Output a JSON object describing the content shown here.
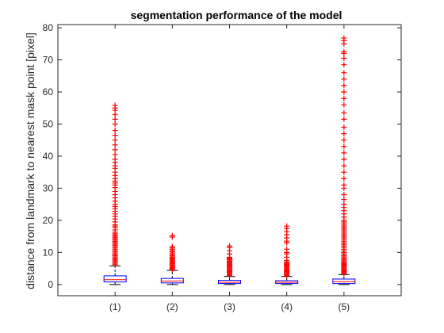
{
  "chart_data": {
    "type": "boxplot",
    "title": "segmentation performance of the model",
    "xlabel": "",
    "ylabel": "distance from landmark to nearest mask point [pixel]",
    "ylim": [
      -3.5,
      81
    ],
    "yticks": [
      0,
      10,
      20,
      30,
      40,
      50,
      60,
      70,
      80
    ],
    "grid": false,
    "categories": [
      "(1)",
      "(2)",
      "(3)",
      "(4)",
      "(5)"
    ],
    "boxes": [
      {
        "whisker_low": 0,
        "q1": 0.8,
        "median": 1.5,
        "q3": 2.7,
        "whisker_high": 5.8,
        "outliers": [
          6.2,
          6.6,
          7.0,
          7.4,
          7.8,
          8.2,
          8.6,
          9.0,
          9.4,
          9.8,
          10.2,
          10.6,
          11.0,
          11.4,
          11.8,
          12.2,
          12.6,
          13.0,
          13.4,
          13.8,
          14.2,
          14.6,
          15.0,
          15.4,
          15.8,
          16.3,
          17.0,
          17.8,
          18.2,
          18.6,
          19.5,
          20.4,
          21.2,
          22.0,
          22.8,
          23.6,
          24.3,
          25.0,
          26.0,
          27.0,
          28.0,
          29.0,
          30.2,
          31.0,
          31.6,
          32.2,
          33.0,
          34.0,
          35.0,
          36.2,
          37.0,
          38.0,
          39.0,
          40.5,
          42.0,
          43.5,
          45.0,
          46.5,
          48.0,
          50.0,
          51.5,
          53.0,
          54.3,
          55.0,
          55.8
        ]
      },
      {
        "whisker_low": 0,
        "q1": 0.5,
        "median": 1.1,
        "q3": 1.9,
        "whisker_high": 4.4,
        "outliers": [
          4.7,
          5.0,
          5.3,
          5.6,
          5.9,
          6.2,
          6.5,
          6.8,
          7.1,
          7.4,
          7.7,
          8.0,
          8.3,
          8.6,
          9.0,
          9.4,
          9.8,
          10.2,
          10.6,
          11.0,
          11.4,
          11.8,
          14.8,
          15.2
        ]
      },
      {
        "whisker_low": 0,
        "q1": 0.3,
        "median": 0.7,
        "q3": 1.3,
        "whisker_high": 2.5,
        "outliers": [
          2.8,
          3.1,
          3.4,
          3.7,
          4.0,
          4.3,
          4.6,
          4.9,
          5.2,
          5.5,
          5.8,
          6.1,
          6.4,
          6.7,
          7.0,
          7.3,
          7.6,
          7.9,
          8.2,
          8.5,
          9.5,
          10.5,
          11.5,
          12.0
        ]
      },
      {
        "whisker_low": 0,
        "q1": 0.3,
        "median": 0.7,
        "q3": 1.2,
        "whisker_high": 2.5,
        "outliers": [
          2.8,
          3.1,
          3.4,
          3.7,
          4.0,
          4.3,
          4.6,
          4.9,
          5.2,
          5.5,
          5.8,
          6.1,
          6.4,
          6.7,
          7.0,
          7.5,
          8.5,
          9.5,
          10.0,
          11.0,
          13.0,
          13.5,
          14.5,
          15.5,
          16.5,
          17.5,
          18.2
        ]
      },
      {
        "whisker_low": 0,
        "q1": 0.3,
        "median": 0.9,
        "q3": 1.7,
        "whisker_high": 3.1,
        "outliers": [
          3.4,
          3.7,
          4.0,
          4.3,
          4.6,
          4.9,
          5.2,
          5.5,
          5.8,
          6.1,
          6.4,
          6.7,
          7.0,
          7.4,
          7.8,
          8.2,
          8.6,
          9.0,
          9.5,
          10.0,
          10.5,
          11.0,
          11.5,
          12.0,
          12.5,
          13.0,
          13.5,
          14.0,
          14.5,
          15.0,
          15.5,
          16.0,
          16.5,
          17.0,
          17.5,
          18.0,
          18.5,
          19.0,
          19.5,
          20.0,
          21.0,
          22.0,
          23.0,
          24.0,
          25.0,
          26.5,
          28.0,
          30.0,
          31.0,
          33.0,
          35.0,
          37.0,
          39.0,
          41.0,
          43.0,
          45.0,
          47.0,
          49.0,
          51.5,
          53.5,
          56.0,
          58.0,
          60.0,
          62.0,
          64.0,
          66.0,
          68.5,
          70.5,
          72.0,
          72.5,
          75.0,
          76.0,
          76.8
        ]
      }
    ],
    "colors": {
      "box": "#0000ff",
      "median": "#ff0000",
      "whisker": "#000000",
      "outlier": "#ff0000",
      "axes": "#262626"
    }
  }
}
